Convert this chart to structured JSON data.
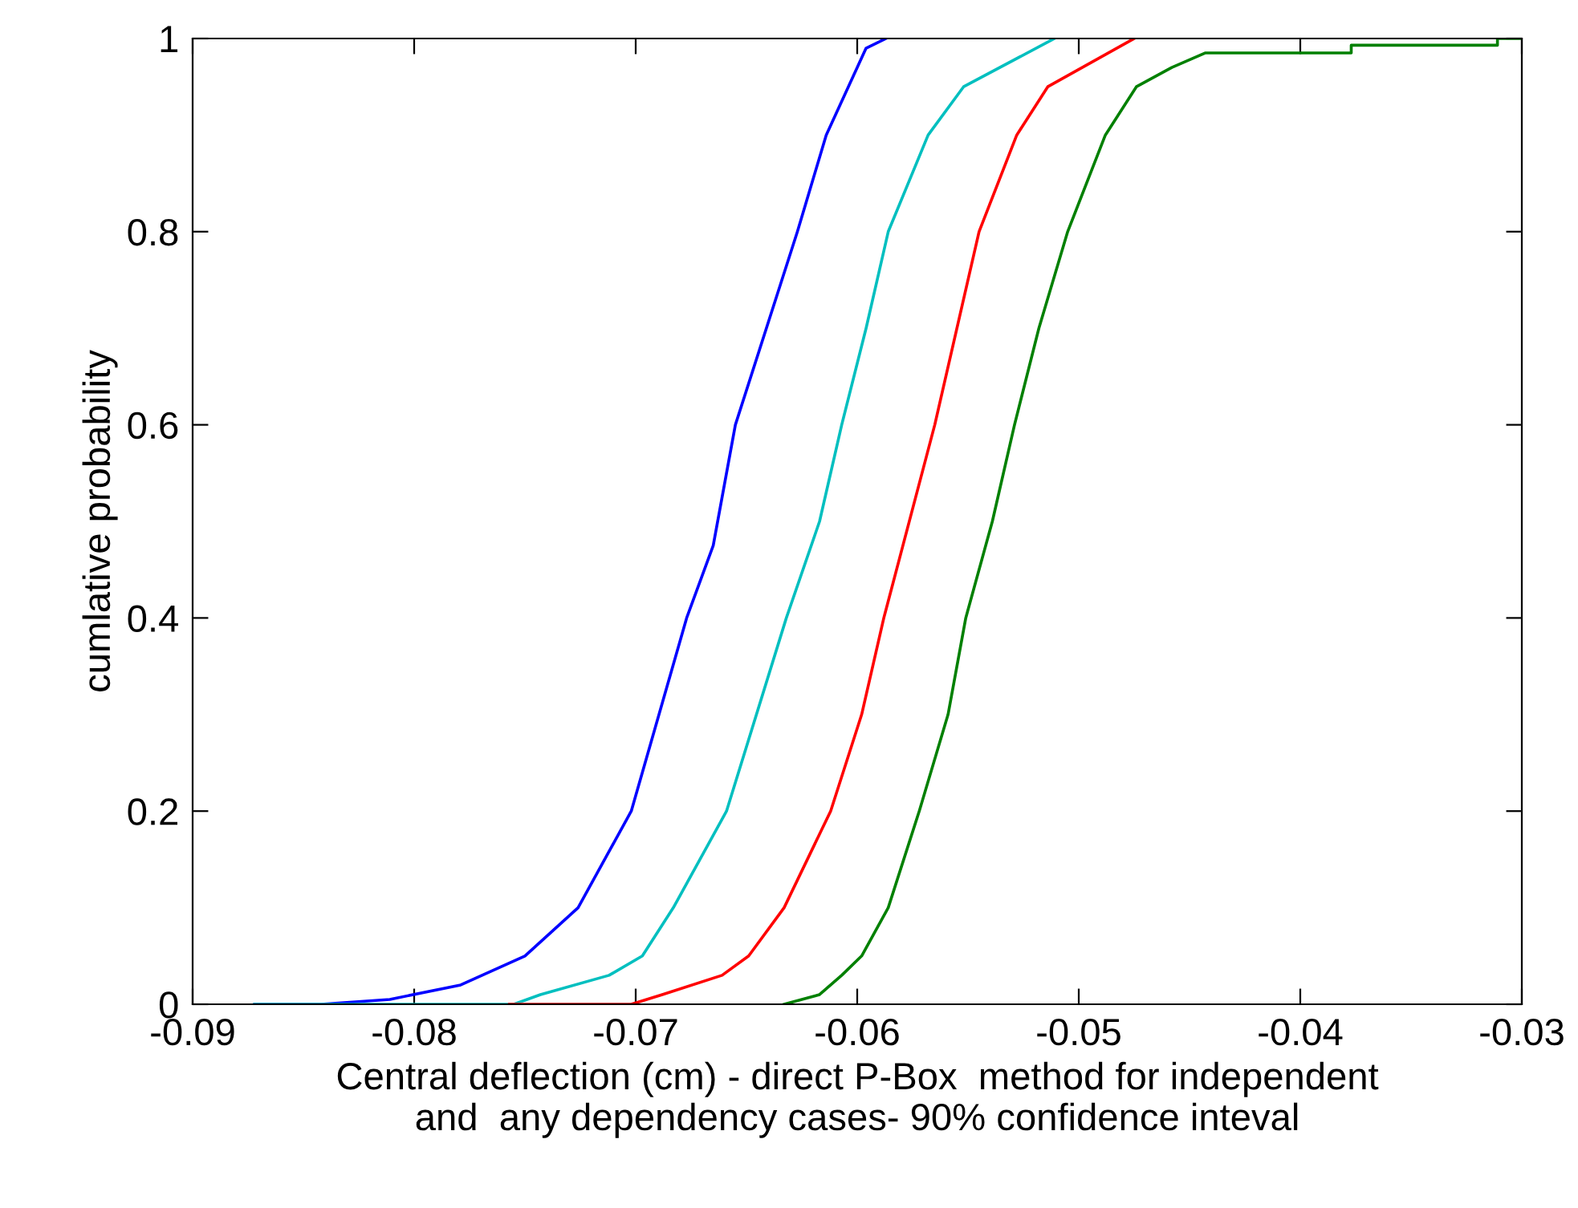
{
  "chart_data": {
    "type": "line",
    "xlabel": "Central deflection (cm) - direct P-Box  method for independent\nand  any dependency cases- 90% confidence inteval",
    "ylabel": "cumlative probability",
    "xlim": [
      -0.09,
      -0.03
    ],
    "xticks": [
      {
        "value": -0.09,
        "label": "-0.09"
      },
      {
        "value": -0.08,
        "label": "-0.08"
      },
      {
        "value": -0.07,
        "label": "-0.07"
      },
      {
        "value": -0.06,
        "label": "-0.06"
      },
      {
        "value": -0.05,
        "label": "-0.05"
      },
      {
        "value": -0.04,
        "label": "-0.04"
      },
      {
        "value": -0.03,
        "label": "-0.03"
      }
    ],
    "ylim": [
      0,
      1
    ],
    "yticks": [
      0,
      0.2,
      0.4,
      0.6,
      0.8,
      1
    ],
    "line_style": "solid",
    "series": [
      {
        "color": "#0000ff",
        "x": [
          -0.0872,
          -0.0842,
          -0.0811,
          -0.0779,
          -0.075,
          -0.0726,
          -0.0702,
          -0.0677,
          -0.0665,
          -0.0655,
          -0.0627,
          -0.0614,
          -0.0596,
          -0.0587
        ],
        "values": [
          0,
          0,
          0.005,
          0.02,
          0.05,
          0.1,
          0.2,
          0.4,
          0.475,
          0.6,
          0.8,
          0.9,
          0.99,
          1
        ]
      },
      {
        "color": "#00bfbf",
        "x": [
          -0.0872,
          -0.0755,
          -0.0743,
          -0.0712,
          -0.0697,
          -0.0683,
          -0.0659,
          -0.0632,
          -0.0617,
          -0.0607,
          -0.0596,
          -0.0586,
          -0.0568,
          -0.0552,
          -0.0511
        ],
        "values": [
          0,
          0,
          0.01,
          0.03,
          0.05,
          0.1,
          0.2,
          0.4,
          0.5,
          0.6,
          0.7,
          0.8,
          0.9,
          0.95,
          1
        ]
      },
      {
        "color": "#ff0000",
        "x": [
          -0.0757,
          -0.0702,
          -0.0688,
          -0.0661,
          -0.0649,
          -0.0633,
          -0.0612,
          -0.0598,
          -0.0588,
          -0.0565,
          -0.0545,
          -0.0528,
          -0.0514,
          -0.0475
        ],
        "values": [
          0,
          0,
          0.01,
          0.03,
          0.05,
          0.1,
          0.2,
          0.3,
          0.4,
          0.6,
          0.8,
          0.9,
          0.95,
          1
        ]
      },
      {
        "color": "#008000",
        "x": [
          -0.0633,
          -0.0617,
          -0.0607,
          -0.0598,
          -0.0586,
          -0.0572,
          -0.0559,
          -0.0551,
          -0.0539,
          -0.0529,
          -0.0518,
          -0.0505,
          -0.0488,
          -0.0474,
          -0.0458,
          -0.0443,
          -0.0377,
          -0.0377,
          -0.0311,
          -0.0311,
          -0.03
        ],
        "values": [
          0,
          0.01,
          0.03,
          0.05,
          0.1,
          0.2,
          0.3,
          0.4,
          0.5,
          0.6,
          0.7,
          0.8,
          0.9,
          0.95,
          0.97,
          0.985,
          0.985,
          0.993,
          0.993,
          1,
          1
        ]
      }
    ]
  }
}
